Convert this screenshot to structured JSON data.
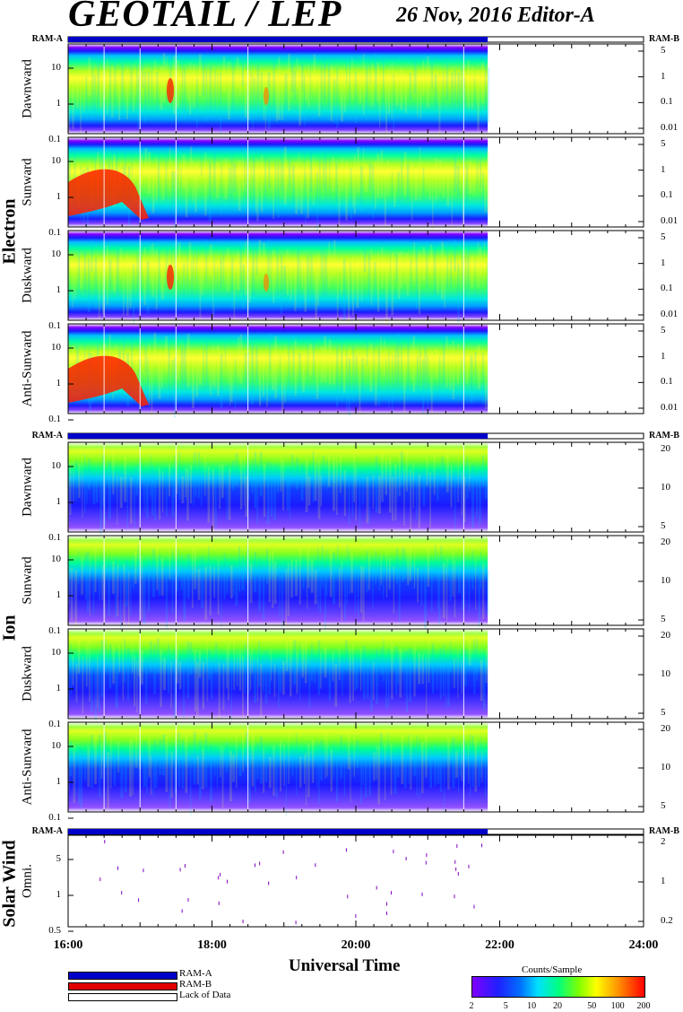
{
  "header": {
    "title": "GEOTAIL / LEP",
    "subtitle": "26 Nov, 2016   Editor-A"
  },
  "ram_labels": {
    "left": "RAM-A",
    "right": "RAM-B"
  },
  "group_labels": {
    "electron": "Electron",
    "ion": "Ion",
    "solar_wind": "Solar Wind"
  },
  "colors": {
    "ram_a": "#0000c8",
    "ram_b": "#e00000",
    "lack_of_data": "#ffffff"
  },
  "legend": {
    "ram_a": "RAM-A",
    "ram_b": "RAM-B",
    "lack": "Lack of Data"
  },
  "colorbar": {
    "title": "Counts/Sample",
    "ticks": [
      "2",
      "5",
      "10",
      "20",
      "50",
      "100",
      "200"
    ],
    "scale": "log",
    "range": [
      2,
      200
    ]
  },
  "chart_data": {
    "type": "heatmap",
    "xlabel": "Universal Time",
    "x_ticks": [
      "16:00",
      "18:00",
      "20:00",
      "22:00",
      "24:00"
    ],
    "xlim": [
      "16:00",
      "24:00"
    ],
    "data_end": "21:50",
    "panels": [
      {
        "group": "Electron",
        "label": "Dawnward",
        "left_ticks": [
          "10",
          "1",
          "0.1"
        ],
        "right_ticks": [
          "5",
          "1",
          "0.1",
          "0.01"
        ]
      },
      {
        "group": "Electron",
        "label": "Sunward",
        "left_ticks": [
          "10",
          "1",
          "0.1"
        ],
        "right_ticks": [
          "5",
          "1",
          "0.1",
          "0.01"
        ]
      },
      {
        "group": "Electron",
        "label": "Duskward",
        "left_ticks": [
          "10",
          "1",
          "0.1"
        ],
        "right_ticks": [
          "5",
          "1",
          "0.1",
          "0.01"
        ]
      },
      {
        "group": "Electron",
        "label": "Anti-Sunward",
        "left_ticks": [
          "10",
          "1",
          "0.1"
        ],
        "right_ticks": [
          "5",
          "1",
          "0.1",
          "0.01"
        ]
      },
      {
        "group": "Ion",
        "label": "Dawnward",
        "left_ticks": [
          "10",
          "1",
          "0.1"
        ],
        "right_ticks": [
          "20",
          "10",
          "5"
        ]
      },
      {
        "group": "Ion",
        "label": "Sunward",
        "left_ticks": [
          "10",
          "1",
          "0.1"
        ],
        "right_ticks": [
          "20",
          "10",
          "5"
        ]
      },
      {
        "group": "Ion",
        "label": "Duskward",
        "left_ticks": [
          "10",
          "1",
          "0.1"
        ],
        "right_ticks": [
          "20",
          "10",
          "5"
        ]
      },
      {
        "group": "Ion",
        "label": "Anti-Sunward",
        "left_ticks": [
          "10",
          "1",
          "0.1"
        ],
        "right_ticks": [
          "20",
          "10",
          "5"
        ]
      },
      {
        "group": "Solar Wind",
        "label": "Omni.",
        "left_ticks": [
          "5",
          "1",
          "0.5"
        ],
        "right_ticks": [
          "2",
          "1",
          "0.2"
        ]
      }
    ]
  }
}
